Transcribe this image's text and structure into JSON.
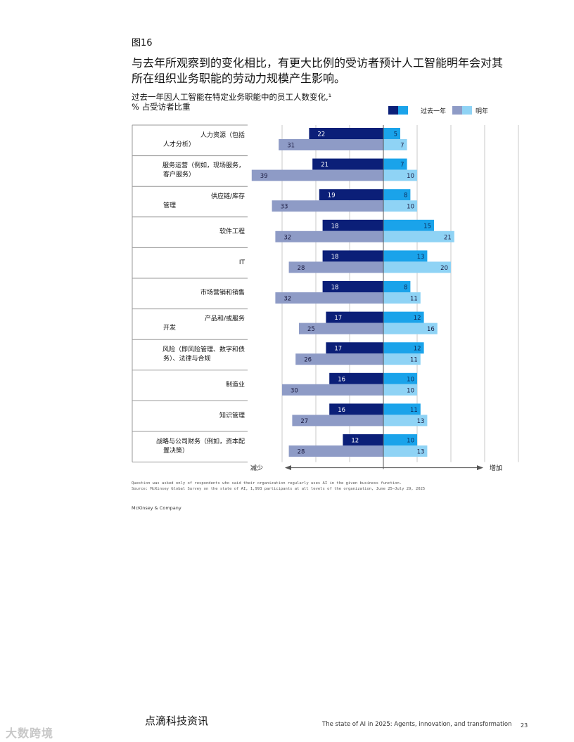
{
  "figure_label": "图16",
  "headline": "与去年所观察到的变化相比，有更大比例的受访者预计人工智能明年会对其所在组织业务职能的劳动力规模产生影响。",
  "footnotes": [
    "Question was asked only of respondents who said their organization regularly uses AI in the given business function.",
    "Source: McKinsey Global Survey on the state of AI, 1,993 participants at all levels of the organization, June 25–July 29, 2025"
  ],
  "company": "McKinsey & Company",
  "footer": {
    "brand": "点滴科技资讯",
    "report_title": "The state of AI in 2025: Agents, innovation, and transformation",
    "page_number": "23",
    "watermark": "大数跨境"
  },
  "colors": {
    "past_decrease": "#0b1f78",
    "past_increase": "#1aa3ea",
    "next_decrease": "#8e9bc6",
    "next_increase": "#8fd3f5"
  },
  "chart_data": {
    "type": "bar",
    "subtitle": "过去一年因人工智能在特定业务职能中的员工人数变化,¹",
    "unit": "% 占受访者比重",
    "legend": [
      "过去一年",
      "明年"
    ],
    "axis_left_label": "减少",
    "axis_right_label": "增加",
    "categories": [
      [
        "人力资源（包括",
        "人才分析）"
      ],
      [
        "服务运营（例如，现场服务，",
        "客户服务）"
      ],
      [
        "供应链/库存",
        "管理"
      ],
      [
        "软件工程"
      ],
      [
        "IT"
      ],
      [
        "市场营销和销售"
      ],
      [
        "产品和/或服务",
        "开发"
      ],
      [
        "风险（即风险管理、数字和债",
        "务）、法律与合规"
      ],
      [
        "制造业"
      ],
      [
        "知识管理"
      ],
      [
        "战略与公司财务（例如，资本配",
        "置决策）"
      ]
    ],
    "series": [
      {
        "name": "过去一年",
        "direction": "减少",
        "values": [
          22,
          21,
          19,
          18,
          18,
          18,
          17,
          17,
          16,
          16,
          12
        ]
      },
      {
        "name": "过去一年",
        "direction": "增加",
        "values": [
          5,
          7,
          8,
          15,
          13,
          8,
          12,
          12,
          10,
          11,
          10
        ]
      },
      {
        "name": "明年",
        "direction": "减少",
        "values": [
          31,
          39,
          33,
          32,
          28,
          32,
          25,
          26,
          30,
          27,
          28
        ]
      },
      {
        "name": "明年",
        "direction": "增加",
        "values": [
          7,
          10,
          10,
          21,
          20,
          11,
          16,
          11,
          10,
          13,
          13
        ]
      }
    ],
    "xlim": [
      -40,
      40
    ],
    "grid": true
  }
}
